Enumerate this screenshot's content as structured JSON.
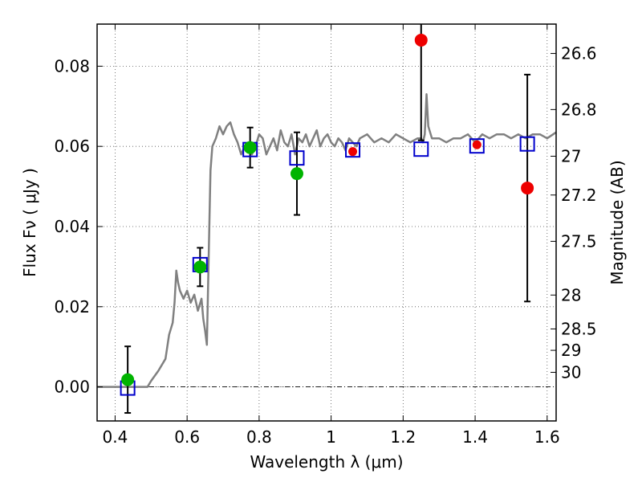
{
  "chart_data": {
    "type": "scatter",
    "title": "",
    "xlabel": "Wavelength  λ (μm)",
    "ylabel": "Flux  Fν  ( μJy )",
    "y2label": "Magnitude (AB)",
    "xlim": [
      0.35,
      1.625
    ],
    "ylim": [
      -0.0085,
      0.0905
    ],
    "xticks": [
      0.4,
      0.6,
      0.8,
      1.0,
      1.2,
      1.4,
      1.6
    ],
    "xtick_labels": [
      "0.4",
      "0.6",
      "0.8",
      "1",
      "1.2",
      "1.4",
      "1.6"
    ],
    "yticks": [
      0.0,
      0.02,
      0.04,
      0.06,
      0.08
    ],
    "ytick_labels": [
      "0.00",
      "0.02",
      "0.04",
      "0.06",
      "0.08"
    ],
    "magnitude_ticks": [
      26.6,
      26.8,
      27.0,
      27.2,
      27.5,
      28.0,
      28.5,
      29.0,
      30.0
    ],
    "magnitude_tick_labels": [
      "26.6",
      "26.8",
      "27",
      "27.2",
      "27.5",
      "28",
      "28.5",
      "29",
      "30"
    ],
    "grid": true,
    "zero_line": true,
    "colors": {
      "model_line": "#808080",
      "model_points": "#0000cc",
      "detected": "#00b400",
      "undetected": "#ee0000",
      "errorbar": "#000000",
      "grid": "#555555"
    },
    "series": [
      {
        "kind": "line",
        "x": [
          0.35,
          0.49,
          0.5,
          0.52,
          0.54,
          0.55,
          0.56,
          0.565,
          0.57,
          0.575,
          0.58,
          0.59,
          0.6,
          0.61,
          0.62,
          0.63,
          0.64,
          0.645,
          0.65,
          0.655,
          0.66,
          0.665,
          0.67,
          0.68,
          0.69,
          0.7,
          0.71,
          0.72,
          0.73,
          0.74,
          0.75,
          0.76,
          0.77,
          0.78,
          0.79,
          0.8,
          0.81,
          0.82,
          0.83,
          0.84,
          0.85,
          0.86,
          0.87,
          0.88,
          0.89,
          0.9,
          0.91,
          0.92,
          0.93,
          0.94,
          0.95,
          0.96,
          0.97,
          0.98,
          0.99,
          1.0,
          1.01,
          1.02,
          1.03,
          1.04,
          1.05,
          1.06,
          1.07,
          1.08,
          1.1,
          1.12,
          1.14,
          1.16,
          1.18,
          1.2,
          1.22,
          1.24,
          1.25,
          1.255,
          1.26,
          1.265,
          1.27,
          1.28,
          1.3,
          1.32,
          1.34,
          1.36,
          1.38,
          1.4,
          1.42,
          1.44,
          1.46,
          1.48,
          1.5,
          1.52,
          1.54,
          1.56,
          1.58,
          1.6,
          1.625
        ],
        "y": [
          0.0,
          0.0,
          0.0015,
          0.004,
          0.007,
          0.013,
          0.016,
          0.021,
          0.029,
          0.026,
          0.024,
          0.022,
          0.024,
          0.021,
          0.023,
          0.019,
          0.022,
          0.017,
          0.014,
          0.0105,
          0.033,
          0.054,
          0.06,
          0.062,
          0.065,
          0.063,
          0.065,
          0.066,
          0.063,
          0.061,
          0.058,
          0.06,
          0.061,
          0.058,
          0.06,
          0.063,
          0.062,
          0.058,
          0.06,
          0.062,
          0.059,
          0.064,
          0.061,
          0.06,
          0.063,
          0.058,
          0.062,
          0.061,
          0.063,
          0.06,
          0.062,
          0.064,
          0.06,
          0.062,
          0.063,
          0.061,
          0.06,
          0.062,
          0.061,
          0.059,
          0.062,
          0.061,
          0.06,
          0.062,
          0.063,
          0.061,
          0.062,
          0.061,
          0.063,
          0.062,
          0.061,
          0.062,
          0.062,
          0.061,
          0.063,
          0.073,
          0.065,
          0.062,
          0.062,
          0.061,
          0.062,
          0.062,
          0.063,
          0.061,
          0.063,
          0.062,
          0.063,
          0.063,
          0.062,
          0.063,
          0.062,
          0.063,
          0.063,
          0.062,
          0.0635
        ]
      },
      {
        "kind": "model-photometry",
        "x": [
          0.435,
          0.636,
          0.775,
          0.905,
          1.06,
          1.25,
          1.405,
          1.545
        ],
        "y": [
          -0.0003,
          0.0305,
          0.0592,
          0.0571,
          0.0591,
          0.0593,
          0.0601,
          0.0606
        ]
      },
      {
        "kind": "detected",
        "x": [
          0.435,
          0.636,
          0.775,
          0.905
        ],
        "y": [
          0.0018,
          0.0299,
          0.0597,
          0.0532
        ],
        "err": [
          0.0083,
          0.0048,
          0.005,
          0.0103
        ]
      },
      {
        "kind": "undetected",
        "x": [
          1.06,
          1.25,
          1.405,
          1.545
        ],
        "y": [
          0.0587,
          0.0865,
          0.0604,
          0.0496
        ],
        "err": [
          0.0005,
          0.025,
          0.0005,
          0.0283
        ]
      }
    ]
  }
}
